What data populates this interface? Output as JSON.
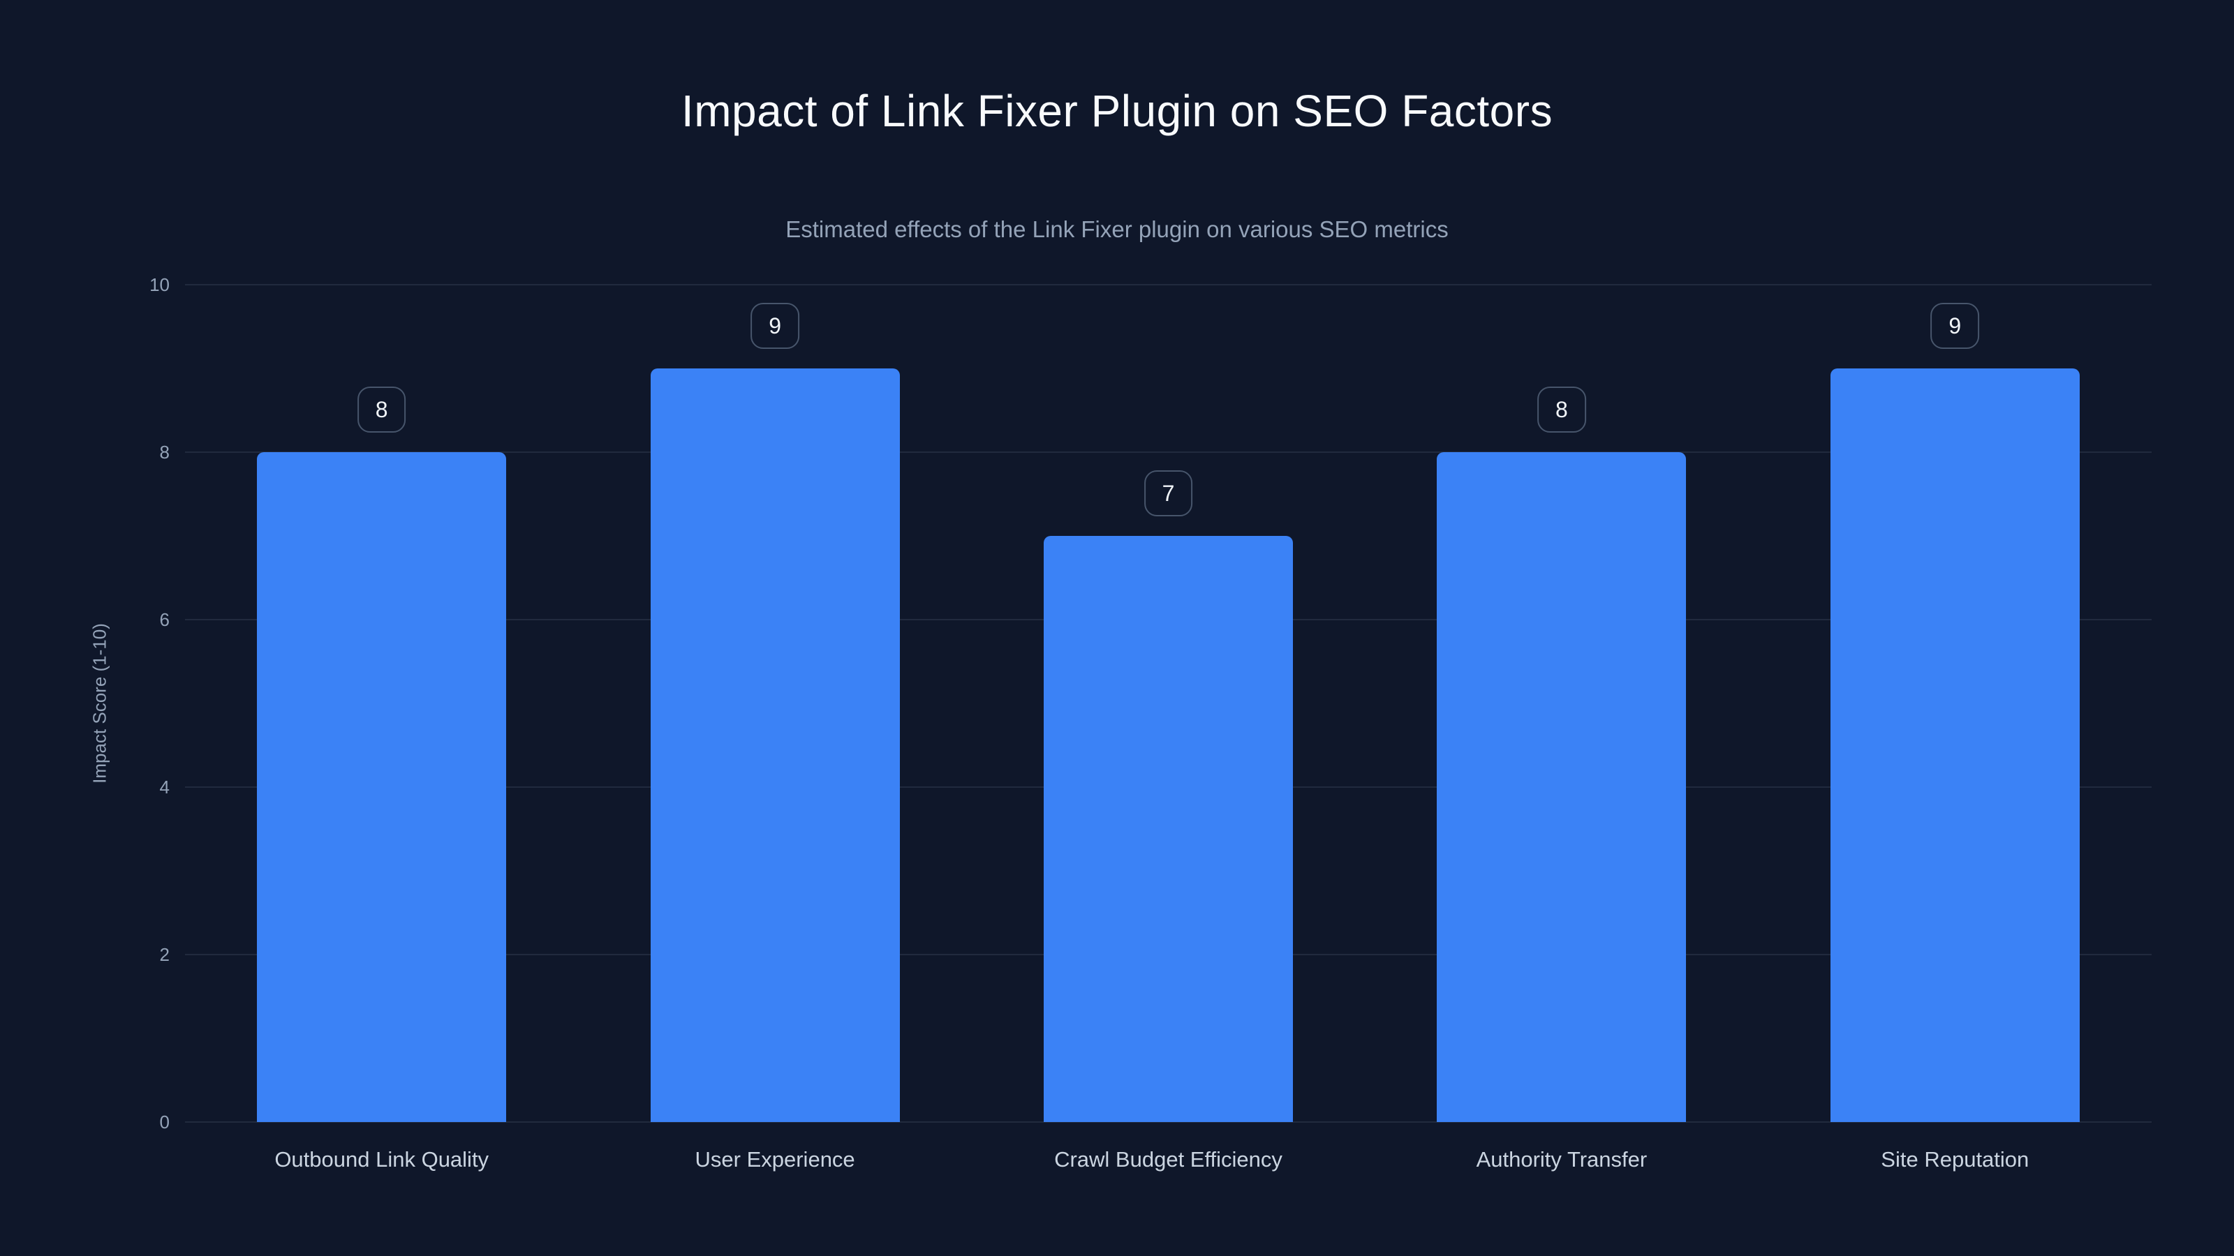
{
  "chart_data": {
    "type": "bar",
    "title": "Impact of Link Fixer Plugin on SEO Factors",
    "subtitle": "Estimated effects of the Link Fixer plugin on various SEO metrics",
    "categories": [
      "Outbound Link Quality",
      "User Experience",
      "Crawl Budget Efficiency",
      "Authority Transfer",
      "Site Reputation"
    ],
    "values": [
      8,
      9,
      7,
      8,
      9
    ],
    "value_labels": [
      "8",
      "9",
      "7",
      "8",
      "9"
    ],
    "xlabel": "",
    "ylabel": "Impact Score (1-10)",
    "ylim": [
      0,
      10
    ],
    "yticks": [
      0,
      2,
      4,
      6,
      8,
      10
    ],
    "grid": true,
    "legend": false,
    "colors": {
      "background": "#0f172a",
      "bar": "#3b82f6",
      "grid": "#475569",
      "badge_border": "#47556b",
      "badge_text": "#f1f5f9",
      "tick_text": "#94a3b8",
      "category_text": "#cbd5e1",
      "title_text": "#f8fafc"
    }
  }
}
